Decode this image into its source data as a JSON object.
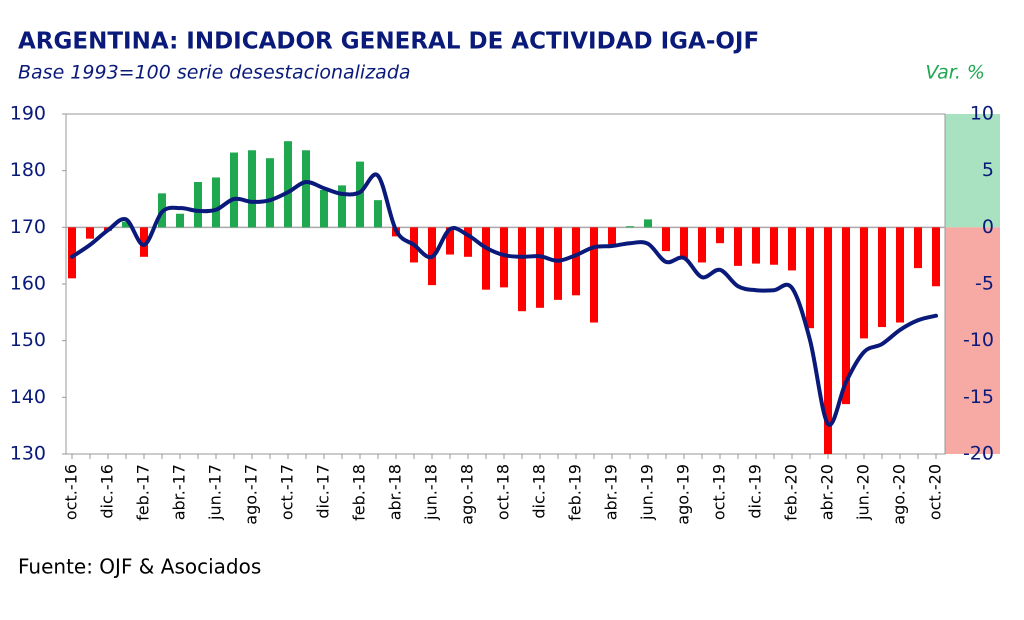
{
  "chart_data": {
    "type": "bar-line",
    "title": "ARGENTINA: INDICADOR GENERAL DE ACTIVIDAD IGA-OJF",
    "subtitle": "Base 1993=100 serie desestacionalizada",
    "y2_label": "Var. %",
    "source": "Fuente: OJF & Asociados",
    "categories": [
      "oct.-16",
      null,
      "dic.-16",
      null,
      "feb.-17",
      null,
      "abr.-17",
      null,
      "jun.-17",
      null,
      "ago.-17",
      null,
      "oct.-17",
      null,
      "dic.-17",
      null,
      "feb.-18",
      null,
      "abr.-18",
      null,
      "jun.-18",
      null,
      "ago.-18",
      null,
      "oct.-18",
      null,
      "dic.-18",
      null,
      "feb.-19",
      null,
      "abr.-19",
      null,
      "jun.-19",
      null,
      "ago.-19",
      null,
      "oct.-19",
      null,
      "dic.-19",
      null,
      "feb.-20",
      null,
      "abr.-20",
      null,
      "jun.-20",
      null,
      "ago.-20",
      null,
      "oct.-20"
    ],
    "series": [
      {
        "type": "line",
        "color": "#0a1a7a",
        "values": [
          164.8,
          166.9,
          169.5,
          171.4,
          166.9,
          172.7,
          173.4,
          172.9,
          173.1,
          175.0,
          174.5,
          174.8,
          176.2,
          178.0,
          176.9,
          175.9,
          176.2,
          179.1,
          169.5,
          166.9,
          164.8,
          169.7,
          168.6,
          166.4,
          165.1,
          164.8,
          164.9,
          164.1,
          165.1,
          166.5,
          166.7,
          167.2,
          167.1,
          163.9,
          164.6,
          161.2,
          162.5,
          159.6,
          158.9,
          158.9,
          159.3,
          150.1,
          135.3,
          142.7,
          148.0,
          149.4,
          151.9,
          153.6,
          154.4
        ]
      },
      {
        "type": "bar",
        "axis": "y2",
        "color": "#1fa84f",
        "negative_color": "#ff0000",
        "values": [
          -4.5,
          -1.0,
          -0.3,
          0.5,
          -2.6,
          3.0,
          1.2,
          4.0,
          4.4,
          6.6,
          6.8,
          6.1,
          7.6,
          6.8,
          3.3,
          3.7,
          5.8,
          2.4,
          -0.8,
          -3.1,
          -5.1,
          -2.4,
          -2.6,
          -5.5,
          -5.3,
          -7.4,
          -7.1,
          -6.4,
          -6.0,
          -8.4,
          -1.5,
          0.1,
          0.7,
          -2.1,
          -2.7,
          -3.1,
          -1.4,
          -3.4,
          -3.2,
          -3.3,
          -3.8,
          -8.9,
          -20,
          -15.6,
          -9.8,
          -8.8,
          -8.4,
          -3.6,
          -5.2
        ]
      }
    ],
    "ylim": [
      130,
      190
    ],
    "yticks": [
      130,
      140,
      150,
      160,
      170,
      180,
      190
    ],
    "y2lim": [
      -20,
      10
    ],
    "y2ticks": [
      -20,
      -15,
      -10,
      -5,
      0,
      5,
      10
    ],
    "y2_positive_band_color": "#a8e2c0",
    "y2_negative_band_color": "#f7a9a4"
  }
}
